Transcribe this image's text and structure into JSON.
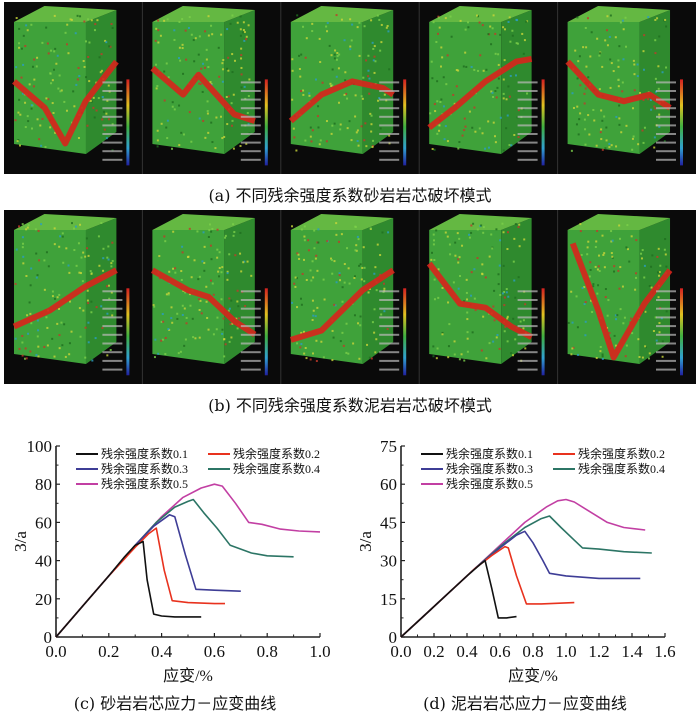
{
  "figure": {
    "caption_a": "(a) 不同残余强度系数砂岩岩芯破坏模式",
    "caption_b": "(b) 不同残余强度系数泥岩岩芯破坏模式",
    "caption_c": "(c) 砂岩岩芯应力－应变曲线",
    "caption_d": "(d) 泥岩岩芯应力－应变曲线"
  },
  "panels": {
    "row_a": [
      "sandstone-0.1",
      "sandstone-0.2",
      "sandstone-0.3",
      "sandstone-0.4",
      "sandstone-0.5"
    ],
    "row_b": [
      "mudstone-0.1",
      "mudstone-0.2",
      "mudstone-0.3",
      "mudstone-0.4",
      "mudstone-0.5"
    ],
    "colors": {
      "background": "#0a0a0a",
      "rock": "#3fa23a",
      "crack": "#d8231c"
    }
  },
  "chart_data": [
    {
      "type": "line",
      "title": "(c) 砂岩岩芯应力－应变曲线",
      "xlabel": "应变/%",
      "ylabel": "3/a",
      "xlim": [
        0,
        1.0
      ],
      "ylim": [
        0,
        100
      ],
      "xticks": [
        0.0,
        0.2,
        0.4,
        0.6,
        0.8,
        1.0
      ],
      "xtick_labels": [
        "0.0",
        "0.2",
        "0.4",
        "0.6",
        "0.8",
        "1.0"
      ],
      "yticks": [
        0,
        20,
        40,
        60,
        80,
        100
      ],
      "ytick_labels": [
        "0",
        "20",
        "40",
        "60",
        "80",
        "100"
      ],
      "legend_position": "top",
      "series": [
        {
          "name": "残余强度系数0.1",
          "color": "#111111",
          "points": [
            [
              0,
              0
            ],
            [
              0.1,
              16
            ],
            [
              0.2,
              32
            ],
            [
              0.26,
              42
            ],
            [
              0.3,
              48
            ],
            [
              0.33,
              50
            ],
            [
              0.345,
              30
            ],
            [
              0.37,
              12
            ],
            [
              0.4,
              11
            ],
            [
              0.45,
              10.5
            ],
            [
              0.55,
              10.5
            ]
          ]
        },
        {
          "name": "残余强度系数0.2",
          "color": "#e8321e",
          "points": [
            [
              0,
              0
            ],
            [
              0.1,
              16
            ],
            [
              0.2,
              32
            ],
            [
              0.3,
              47
            ],
            [
              0.35,
              54
            ],
            [
              0.38,
              57
            ],
            [
              0.41,
              35
            ],
            [
              0.44,
              19
            ],
            [
              0.5,
              18
            ],
            [
              0.6,
              17.5
            ],
            [
              0.64,
              17.5
            ]
          ]
        },
        {
          "name": "残余强度系数0.3",
          "color": "#3e3d96",
          "points": [
            [
              0,
              0
            ],
            [
              0.1,
              16
            ],
            [
              0.2,
              32
            ],
            [
              0.3,
              48
            ],
            [
              0.37,
              58
            ],
            [
              0.43,
              64
            ],
            [
              0.45,
              63
            ],
            [
              0.49,
              43
            ],
            [
              0.53,
              25
            ],
            [
              0.6,
              24.5
            ],
            [
              0.7,
              24
            ]
          ]
        },
        {
          "name": "残余强度系数0.4",
          "color": "#2c7565",
          "points": [
            [
              0,
              0
            ],
            [
              0.1,
              16
            ],
            [
              0.2,
              32
            ],
            [
              0.3,
              48
            ],
            [
              0.38,
              60
            ],
            [
              0.45,
              68
            ],
            [
              0.5,
              71
            ],
            [
              0.52,
              72
            ],
            [
              0.56,
              65
            ],
            [
              0.61,
              57
            ],
            [
              0.66,
              48
            ],
            [
              0.7,
              46
            ],
            [
              0.74,
              44
            ],
            [
              0.8,
              42.5
            ],
            [
              0.9,
              42
            ]
          ]
        },
        {
          "name": "残余强度系数0.5",
          "color": "#c23fa3",
          "points": [
            [
              0,
              0
            ],
            [
              0.1,
              16
            ],
            [
              0.2,
              32
            ],
            [
              0.3,
              48
            ],
            [
              0.4,
              63
            ],
            [
              0.48,
              73
            ],
            [
              0.55,
              78
            ],
            [
              0.6,
              80
            ],
            [
              0.63,
              79
            ],
            [
              0.68,
              70
            ],
            [
              0.73,
              60
            ],
            [
              0.78,
              59
            ],
            [
              0.85,
              56.5
            ],
            [
              0.92,
              55.5
            ],
            [
              1.0,
              55
            ]
          ]
        }
      ]
    },
    {
      "type": "line",
      "title": "(d) 泥岩岩芯应力－应变曲线",
      "xlabel": "应变/%",
      "ylabel": "3/a",
      "xlim": [
        0,
        1.6
      ],
      "ylim": [
        0,
        75
      ],
      "xticks": [
        0.0,
        0.2,
        0.4,
        0.6,
        0.8,
        1.0,
        1.2,
        1.4,
        1.6
      ],
      "xtick_labels": [
        "0.0",
        "0.2",
        "0.4",
        "0.6",
        "0.8",
        "1.0",
        "1.2",
        "1.4",
        "1.6"
      ],
      "yticks": [
        0,
        15,
        30,
        45,
        60,
        75
      ],
      "ytick_labels": [
        "0",
        "15",
        "30",
        "45",
        "60",
        "75"
      ],
      "legend_position": "top",
      "series": [
        {
          "name": "残余强度系数0.1",
          "color": "#111111",
          "points": [
            [
              0,
              0
            ],
            [
              0.15,
              9
            ],
            [
              0.3,
              18
            ],
            [
              0.4,
              24
            ],
            [
              0.48,
              28.5
            ],
            [
              0.51,
              30
            ],
            [
              0.55,
              19
            ],
            [
              0.59,
              7.5
            ],
            [
              0.64,
              7.5
            ],
            [
              0.7,
              8
            ]
          ]
        },
        {
          "name": "残余强度系数0.2",
          "color": "#e8321e",
          "points": [
            [
              0,
              0
            ],
            [
              0.15,
              9
            ],
            [
              0.3,
              18
            ],
            [
              0.45,
              27
            ],
            [
              0.55,
              32
            ],
            [
              0.63,
              35.5
            ],
            [
              0.65,
              35
            ],
            [
              0.7,
              24
            ],
            [
              0.76,
              13
            ],
            [
              0.85,
              13
            ],
            [
              1.05,
              13.5
            ]
          ]
        },
        {
          "name": "残余强度系数0.3",
          "color": "#3e3d96",
          "points": [
            [
              0,
              0
            ],
            [
              0.15,
              9
            ],
            [
              0.3,
              18
            ],
            [
              0.45,
              27
            ],
            [
              0.6,
              35
            ],
            [
              0.7,
              40
            ],
            [
              0.75,
              41.5
            ],
            [
              0.8,
              37
            ],
            [
              0.86,
              30
            ],
            [
              0.9,
              25
            ],
            [
              1.0,
              24
            ],
            [
              1.2,
              23
            ],
            [
              1.45,
              23
            ]
          ]
        },
        {
          "name": "残余强度系数0.4",
          "color": "#2c7565",
          "points": [
            [
              0,
              0
            ],
            [
              0.15,
              9
            ],
            [
              0.3,
              18
            ],
            [
              0.45,
              27
            ],
            [
              0.6,
              35.5
            ],
            [
              0.75,
              43
            ],
            [
              0.85,
              46.5
            ],
            [
              0.9,
              47.5
            ],
            [
              0.97,
              43
            ],
            [
              1.05,
              38
            ],
            [
              1.1,
              35
            ],
            [
              1.2,
              34.5
            ],
            [
              1.35,
              33.5
            ],
            [
              1.52,
              33
            ]
          ]
        },
        {
          "name": "残余强度系数0.5",
          "color": "#c23fa3",
          "points": [
            [
              0,
              0
            ],
            [
              0.15,
              9
            ],
            [
              0.3,
              18
            ],
            [
              0.45,
              27
            ],
            [
              0.6,
              36
            ],
            [
              0.75,
              45
            ],
            [
              0.88,
              51
            ],
            [
              0.95,
              53.5
            ],
            [
              1.0,
              54
            ],
            [
              1.05,
              53
            ],
            [
              1.15,
              49
            ],
            [
              1.25,
              45
            ],
            [
              1.35,
              43
            ],
            [
              1.48,
              42
            ]
          ]
        }
      ]
    }
  ]
}
